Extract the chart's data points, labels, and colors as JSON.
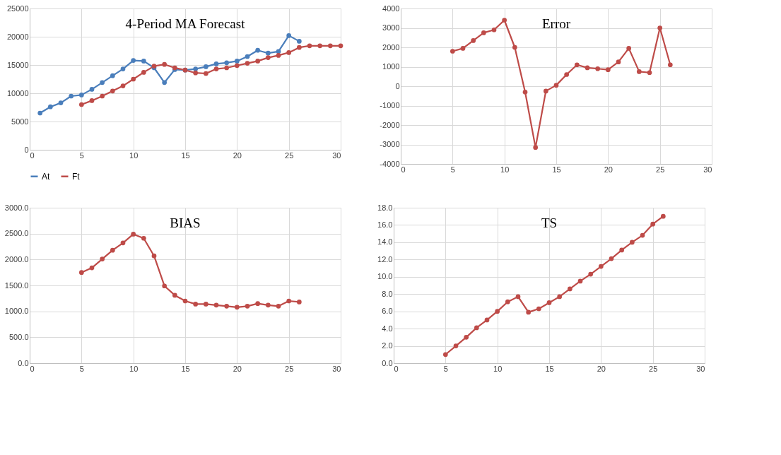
{
  "chart_data": [
    {
      "type": "line",
      "title": "4-Period MA Forecast",
      "xlim": [
        0,
        30
      ],
      "xticks": [
        0,
        5,
        10,
        15,
        20,
        25,
        30
      ],
      "ylim": [
        0,
        25000
      ],
      "yticks": [
        0,
        5000,
        10000,
        15000,
        20000,
        25000
      ],
      "grid": true,
      "marker": "circle",
      "legend": "bottom",
      "series": [
        {
          "name": "At",
          "color": "#4a7ebb",
          "x": [
            1,
            2,
            3,
            4,
            5,
            6,
            7,
            8,
            9,
            10,
            11,
            12,
            13,
            14,
            15,
            16,
            17,
            18,
            19,
            20,
            21,
            22,
            23,
            24,
            25,
            26
          ],
          "values": [
            6500,
            7600,
            8300,
            9500,
            9700,
            10700,
            11900,
            13100,
            14300,
            15800,
            15700,
            14500,
            11900,
            14200,
            14100,
            14300,
            14700,
            15200,
            15400,
            15700,
            16500,
            17600,
            17100,
            17400,
            20200,
            19200
          ]
        },
        {
          "name": "Ft",
          "color": "#be4b48",
          "x": [
            5,
            6,
            7,
            8,
            9,
            10,
            11,
            12,
            13,
            14,
            15,
            16,
            17,
            18,
            19,
            20,
            21,
            22,
            23,
            24,
            25,
            26,
            27,
            28,
            29,
            30
          ],
          "values": [
            8000,
            8700,
            9500,
            10400,
            11300,
            12500,
            13700,
            14800,
            15100,
            14500,
            14100,
            13600,
            13500,
            14300,
            14500,
            14900,
            15300,
            15700,
            16300,
            16700,
            17200,
            18100,
            18400,
            18400,
            18400,
            18400
          ]
        }
      ]
    },
    {
      "type": "line",
      "title": "Error",
      "xlim": [
        0,
        30
      ],
      "xticks": [
        0,
        5,
        10,
        15,
        20,
        25,
        30
      ],
      "ylim": [
        -4000,
        4000
      ],
      "yticks": [
        -4000,
        -3000,
        -2000,
        -1000,
        0,
        1000,
        2000,
        3000,
        4000
      ],
      "grid": true,
      "marker": "circle",
      "legend": false,
      "series": [
        {
          "color": "#be4b48",
          "x": [
            5,
            6,
            7,
            8,
            9,
            10,
            11,
            12,
            13,
            14,
            15,
            16,
            17,
            18,
            19,
            20,
            21,
            22,
            23,
            24,
            25,
            26
          ],
          "values": [
            1800,
            1950,
            2350,
            2750,
            2900,
            3400,
            2000,
            -300,
            -3150,
            -250,
            50,
            600,
            1100,
            950,
            900,
            850,
            1250,
            1950,
            750,
            700,
            3000,
            1100
          ]
        }
      ]
    },
    {
      "type": "line",
      "title": "BIAS",
      "xlim": [
        0,
        30
      ],
      "xticks": [
        0,
        5,
        10,
        15,
        20,
        25,
        30
      ],
      "ylim": [
        0,
        3000
      ],
      "yticks": [
        {
          "value": 0,
          "label": "0.0"
        },
        {
          "value": 500,
          "label": "500.0"
        },
        {
          "value": 1000,
          "label": "1000.0"
        },
        {
          "value": 1500,
          "label": "1500.0"
        },
        {
          "value": 2000,
          "label": "2000.0"
        },
        {
          "value": 2500,
          "label": "2500.0"
        },
        {
          "value": 3000,
          "label": "3000.0"
        }
      ],
      "grid": true,
      "marker": "circle",
      "legend": false,
      "series": [
        {
          "color": "#be4b48",
          "x": [
            5,
            6,
            7,
            8,
            9,
            10,
            11,
            12,
            13,
            14,
            15,
            16,
            17,
            18,
            19,
            20,
            21,
            22,
            23,
            24,
            25,
            26
          ],
          "values": [
            1750,
            1840,
            2010,
            2180,
            2320,
            2490,
            2410,
            2070,
            1490,
            1310,
            1200,
            1140,
            1140,
            1120,
            1100,
            1080,
            1100,
            1150,
            1120,
            1100,
            1200,
            1180
          ]
        }
      ]
    },
    {
      "type": "line",
      "title": "TS",
      "xlim": [
        0,
        30
      ],
      "xticks": [
        0,
        5,
        10,
        15,
        20,
        25,
        30
      ],
      "ylim": [
        0,
        18
      ],
      "yticks": [
        {
          "value": 0,
          "label": "0.0"
        },
        {
          "value": 2,
          "label": "2.0"
        },
        {
          "value": 4,
          "label": "4.0"
        },
        {
          "value": 6,
          "label": "6.0"
        },
        {
          "value": 8,
          "label": "8.0"
        },
        {
          "value": 10,
          "label": "10.0"
        },
        {
          "value": 12,
          "label": "12.0"
        },
        {
          "value": 14,
          "label": "14.0"
        },
        {
          "value": 16,
          "label": "16.0"
        },
        {
          "value": 18,
          "label": "18.0"
        }
      ],
      "grid": true,
      "marker": "circle",
      "legend": false,
      "series": [
        {
          "color": "#be4b48",
          "x": [
            5,
            6,
            7,
            8,
            9,
            10,
            11,
            12,
            13,
            14,
            15,
            16,
            17,
            18,
            19,
            20,
            21,
            22,
            23,
            24,
            25,
            26
          ],
          "values": [
            1.0,
            2.0,
            3.0,
            4.1,
            5.0,
            6.0,
            7.1,
            7.7,
            5.9,
            6.3,
            7.0,
            7.7,
            8.6,
            9.5,
            10.3,
            11.2,
            12.1,
            13.1,
            14.0,
            14.8,
            16.1,
            17.0
          ]
        }
      ]
    }
  ]
}
